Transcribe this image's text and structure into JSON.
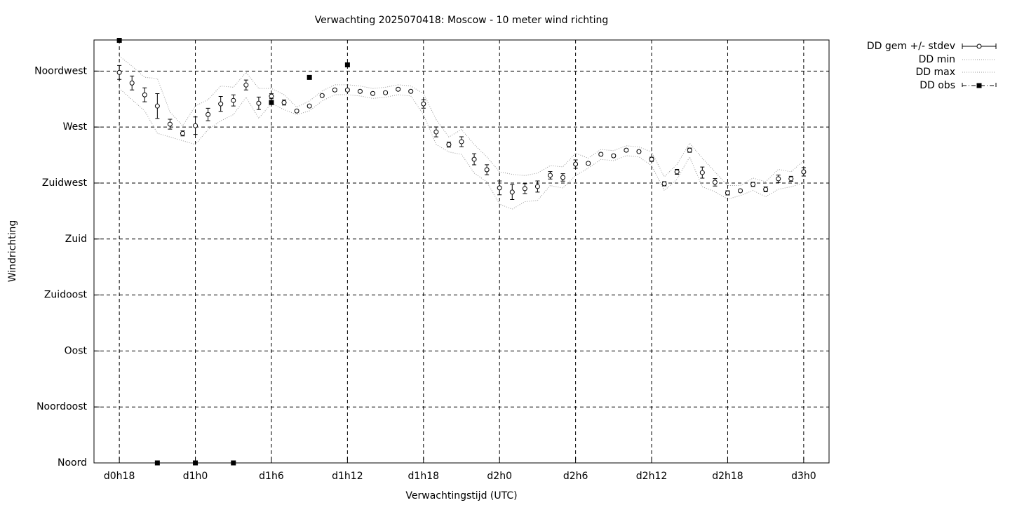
{
  "chart_data": {
    "type": "errorbar-line",
    "title": "Verwachting 2025070418: Moscow - 10 meter wind richting",
    "xlabel": "Verwachtingstijd (UTC)",
    "ylabel": "Windrichting",
    "x": [
      18,
      19,
      20,
      21,
      22,
      23,
      24,
      25,
      26,
      27,
      28,
      29,
      30,
      31,
      32,
      33,
      34,
      35,
      36,
      37,
      38,
      39,
      40,
      41,
      42,
      43,
      44,
      45,
      46,
      47,
      48,
      49,
      50,
      51,
      52,
      53,
      54,
      55,
      56,
      57,
      58,
      59,
      60,
      61,
      62,
      63,
      64,
      65,
      66,
      67,
      68,
      69,
      70,
      71,
      72
    ],
    "series": [
      {
        "name": "DD gem +/- stdev",
        "color": "#000000",
        "values": [
          313.9,
          305.4,
          295.9,
          286.9,
          272.3,
          264.9,
          271.1,
          280.1,
          288.6,
          291.4,
          303.8,
          289.1,
          294.8,
          289.7,
          282.9,
          286.9,
          295.3,
          299.8,
          299.8,
          298.7,
          297,
          297.6,
          300.4,
          298.7,
          288.6,
          266.1,
          255.9,
          258.2,
          244.1,
          235.7,
          221.1,
          217.7,
          220.5,
          222.2,
          231.2,
          229.5,
          240.2,
          240.8,
          248.1,
          246.9,
          251.4,
          250.3,
          244.1,
          224.4,
          234,
          251.4,
          233.4,
          225.6,
          217.1,
          218.8,
          223.9,
          219.9,
          228.4,
          228.4,
          234
        ],
        "errors": [
          5.6,
          5.6,
          5.6,
          10,
          4,
          2,
          7,
          5,
          6,
          4.5,
          4,
          5,
          2,
          2,
          0.5,
          1,
          1,
          1,
          1,
          1,
          1,
          1,
          1,
          1,
          3.4,
          4,
          2,
          4,
          4.5,
          4,
          5.6,
          6,
          4,
          4.5,
          3,
          3,
          3.4,
          1,
          1,
          1,
          1,
          1,
          1.7,
          1.7,
          2,
          1.7,
          4.5,
          3,
          1.7,
          1,
          1.7,
          2,
          3,
          2,
          3.4
        ]
      },
      {
        "name": "DD min",
        "color": "#999999",
        "values": [
          301,
          292,
          283,
          265,
          262,
          259,
          256,
          268,
          275,
          280,
          294,
          277,
          289,
          284,
          280,
          283,
          291,
          296,
          296,
          295,
          293,
          294,
          296,
          295,
          280,
          256,
          250,
          248,
          233,
          226,
          208,
          204,
          210,
          211,
          223,
          221,
          231,
          237,
          244,
          243,
          247,
          246,
          239,
          219,
          228,
          246,
          222,
          218,
          212,
          215,
          219,
          214,
          220,
          222,
          225
        ]
      },
      {
        "name": "DD max",
        "color": "#999999",
        "values": [
          327,
          319,
          310,
          309,
          282,
          271,
          287,
          292,
          303,
          302,
          314,
          301,
          301,
          296,
          286,
          291,
          299,
          304,
          304,
          303,
          301,
          302,
          304,
          303,
          297,
          276,
          262,
          268,
          256,
          246,
          234,
          232,
          231,
          233,
          239,
          238,
          249,
          245,
          252,
          251,
          255,
          254,
          250,
          230,
          240,
          257,
          245,
          234,
          223,
          223,
          229,
          226,
          236,
          234,
          243
        ]
      },
      {
        "name": "DD obs",
        "color": "#000000",
        "x": [
          18,
          21,
          24,
          27,
          30,
          33,
          36
        ],
        "values": [
          339.7,
          0,
          0,
          0,
          289.7,
          309.9,
          320
        ]
      }
    ],
    "xlim": [
      16,
      74
    ],
    "xticks": [
      {
        "value": 18,
        "label": "d0h18"
      },
      {
        "value": 24,
        "label": "d1h0"
      },
      {
        "value": 30,
        "label": "d1h6"
      },
      {
        "value": 36,
        "label": "d1h12"
      },
      {
        "value": 42,
        "label": "d1h18"
      },
      {
        "value": 48,
        "label": "d2h0"
      },
      {
        "value": 54,
        "label": "d2h6"
      },
      {
        "value": 60,
        "label": "d2h12"
      },
      {
        "value": 66,
        "label": "d2h18"
      },
      {
        "value": 72,
        "label": "d3h0"
      }
    ],
    "ylim": [
      0,
      340
    ],
    "yticks": [
      {
        "value": 0,
        "label": "Noord"
      },
      {
        "value": 45,
        "label": "Noordoost"
      },
      {
        "value": 90,
        "label": "Oost"
      },
      {
        "value": 135,
        "label": "Zuidoost"
      },
      {
        "value": 180,
        "label": "Zuid"
      },
      {
        "value": 225,
        "label": "Zuidwest"
      },
      {
        "value": 270,
        "label": "West"
      },
      {
        "value": 315,
        "label": "Noordwest"
      }
    ],
    "grid": true
  }
}
